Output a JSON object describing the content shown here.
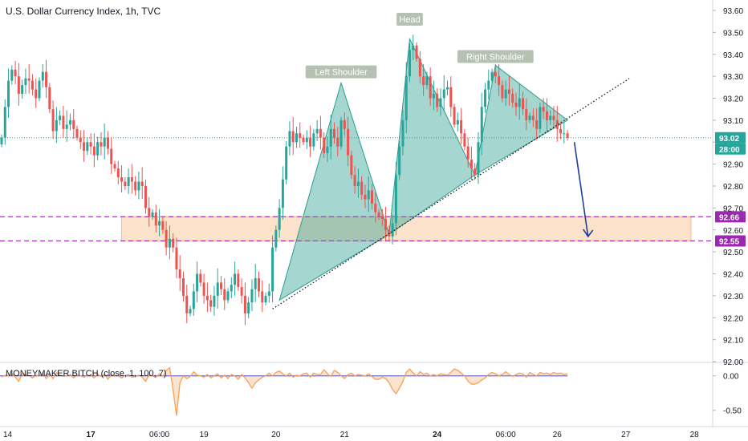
{
  "header": {
    "title": "U.S. Dollar Currency Index, 1h, TVC"
  },
  "indicator": {
    "title": "MONEYMAKER BITCH (close, 1, 100, 7)"
  },
  "colors": {
    "up": "#26a69a",
    "down": "#ef5350",
    "pattern": "#2a9d8f",
    "zone": "#fbd5b5",
    "zone_line": "#9c27b0",
    "arrow": "#1e3f99",
    "last": "#26a69a",
    "osc": "#f5a15a",
    "zero": "#5b6bd6"
  },
  "chart_data": [
    {
      "type": "candlestick",
      "title": "U.S. Dollar Currency Index, 1h, TVC",
      "ylim": [
        92.0,
        93.6
      ],
      "price_ticks": [
        "93.60",
        "93.50",
        "93.40",
        "93.30",
        "93.20",
        "93.10",
        "93.00",
        "92.90",
        "92.80",
        "92.70",
        "92.60",
        "92.50",
        "92.40",
        "92.30",
        "92.20",
        "92.10",
        "92.00"
      ],
      "time_labels": [
        {
          "x": 0,
          "label": "14"
        },
        {
          "x": 26,
          "label": "17"
        },
        {
          "x": 46,
          "label": "06:00"
        },
        {
          "x": 59,
          "label": "19"
        },
        {
          "x": 80,
          "label": "20"
        },
        {
          "x": 100,
          "label": "21"
        },
        {
          "x": 127,
          "label": "24"
        },
        {
          "x": 147,
          "label": "06:00"
        },
        {
          "x": 162,
          "label": "26"
        },
        {
          "x": 182,
          "label": "27"
        },
        {
          "x": 202,
          "label": "28"
        }
      ],
      "x_range": [
        0,
        205
      ],
      "last_price": "93.02",
      "countdown": "28:00",
      "zone": {
        "upper": 92.66,
        "lower": 92.55,
        "upper_label": "92.66",
        "lower_label": "92.55",
        "x_start": 35,
        "x_end": 201
      },
      "annotations": [
        {
          "label": "Left Shoulder",
          "x": 99,
          "y": 93.32
        },
        {
          "label": "Head",
          "x": 119,
          "y": 93.56
        },
        {
          "label": "Right Shoulder",
          "x": 144,
          "y": 93.39
        }
      ],
      "pattern": [
        {
          "points": [
            [
              81,
              92.28
            ],
            [
              99,
              93.27
            ],
            [
              113,
              92.58
            ]
          ]
        },
        {
          "points": [
            [
              113,
              92.58
            ],
            [
              119,
              93.47
            ],
            [
              138,
              92.85
            ]
          ]
        },
        {
          "points": [
            [
              138,
              92.85
            ],
            [
              144,
              93.35
            ],
            [
              165,
              93.1
            ]
          ]
        }
      ],
      "neckline": [
        [
          79,
          92.24
        ],
        [
          183,
          93.29
        ]
      ],
      "arrow": {
        "from": [
          167,
          93.0
        ],
        "to": [
          171,
          92.57
        ]
      },
      "closes": [
        93.02,
        93.16,
        93.28,
        93.33,
        93.3,
        93.22,
        93.26,
        93.29,
        93.28,
        93.24,
        93.2,
        93.28,
        93.32,
        93.25,
        93.15,
        93.05,
        93.1,
        93.12,
        93.06,
        93.08,
        93.1,
        93.06,
        93.02,
        93.0,
        92.96,
        93.0,
        92.98,
        92.94,
        93.0,
        92.98,
        93.02,
        92.97,
        92.9,
        92.88,
        92.84,
        92.82,
        92.8,
        92.84,
        92.82,
        92.78,
        92.82,
        92.8,
        92.7,
        92.66,
        92.68,
        92.62,
        92.64,
        92.6,
        92.52,
        92.56,
        92.52,
        92.42,
        92.38,
        92.3,
        92.22,
        92.24,
        92.32,
        92.4,
        92.36,
        92.3,
        92.28,
        92.25,
        92.3,
        92.36,
        92.33,
        92.28,
        92.32,
        92.35,
        92.4,
        92.34,
        92.3,
        92.22,
        92.27,
        92.33,
        92.38,
        92.32,
        92.27,
        92.3,
        92.32,
        92.52,
        92.6,
        92.7,
        92.83,
        92.98,
        93.05,
        93.0,
        93.04,
        93.02,
        93.0,
        93.02,
        92.98,
        93.04,
        93.06,
        93.02,
        92.95,
        92.98,
        93.06,
        93.02,
        92.98,
        93.1,
        93.06,
        92.94,
        92.85,
        92.8,
        92.82,
        92.76,
        92.74,
        92.78,
        92.72,
        92.68,
        92.66,
        92.65,
        92.6,
        92.57,
        92.63,
        92.85,
        92.98,
        93.1,
        93.3,
        93.42,
        93.44,
        93.38,
        93.3,
        93.26,
        93.3,
        93.2,
        93.22,
        93.16,
        93.2,
        93.24,
        93.25,
        93.16,
        93.08,
        93.1,
        93.04,
        92.98,
        92.92,
        92.88,
        92.85,
        93.0,
        93.16,
        93.24,
        93.28,
        93.32,
        93.3,
        93.26,
        93.2,
        93.24,
        93.22,
        93.18,
        93.16,
        93.2,
        93.15,
        93.1,
        93.12,
        93.1,
        93.06,
        93.16,
        93.14,
        93.1,
        93.12,
        93.1,
        93.06,
        93.04,
        93.04,
        93.02
      ]
    },
    {
      "type": "line",
      "title": "MONEYMAKER BITCH (close, 1, 100, 7)",
      "ylim": [
        -0.62,
        0.16
      ],
      "tick_labels": [
        "0.00",
        "-0.50"
      ],
      "zero": 0.0,
      "values": [
        -0.02,
        0.01,
        0.0,
        0.03,
        -0.02,
        -0.08,
        0.03,
        0.02,
        0.0,
        -0.03,
        0.01,
        0.0,
        0.04,
        -0.04,
        0.02,
        -0.04,
        0.05,
        0.01,
        -0.01,
        0.0,
        0.02,
        -0.03,
        0.01,
        0.0,
        -0.02,
        0.0,
        0.01,
        -0.03,
        0.03,
        -0.01,
        0.02,
        -0.05,
        0.02,
        -0.01,
        0.0,
        -0.03,
        0.0,
        0.02,
        -0.02,
        -0.01,
        0.01,
        -0.02,
        -0.08,
        0.01,
        0.0,
        -0.02,
        0.03,
        -0.01,
        0.08,
        0.12,
        -0.2,
        -0.58,
        -0.1,
        0.0,
        -0.04,
        -0.01,
        0.06,
        0.01,
        0.0,
        -0.02,
        0.02,
        -0.03,
        0.0,
        0.03,
        -0.03,
        0.01,
        -0.04,
        0.02,
        0.0,
        -0.05,
        0.02,
        -0.03,
        -0.1,
        -0.18,
        -0.1,
        -0.06,
        -0.02,
        0.0,
        0.04,
        0.0,
        0.05,
        0.07,
        0.03,
        0.0,
        0.04,
        -0.02,
        0.01,
        0.0,
        0.03,
        0.04,
        -0.02,
        0.04,
        0.02,
        0.02,
        0.09,
        0.03,
        -0.01,
        0.08,
        0.05,
        0.0,
        -0.04,
        0.02,
        0.04,
        0.0,
        0.02,
        0.01,
        0.0,
        0.03,
        -0.01,
        -0.05,
        -0.05,
        -0.02,
        -0.04,
        -0.1,
        -0.2,
        -0.26,
        -0.18,
        -0.08,
        0.05,
        0.1,
        0.04,
        0.0,
        0.06,
        0.02,
        0.04,
        0.0,
        0.02,
        0.0,
        0.03,
        0.02,
        0.01,
        0.05,
        0.1,
        0.08,
        0.04,
        0.0,
        -0.08,
        -0.12,
        -0.12,
        -0.1,
        -0.06,
        -0.03,
        0.02,
        0.05,
        0.03,
        0.0,
        0.02,
        0.06,
        0.02,
        -0.01,
        0.02,
        0.04,
        0.03,
        -0.02,
        0.05,
        0.02,
        0.0,
        0.05,
        0.03,
        0.04,
        0.02,
        0.05,
        0.03,
        0.04,
        0.02,
        0.03
      ]
    }
  ]
}
